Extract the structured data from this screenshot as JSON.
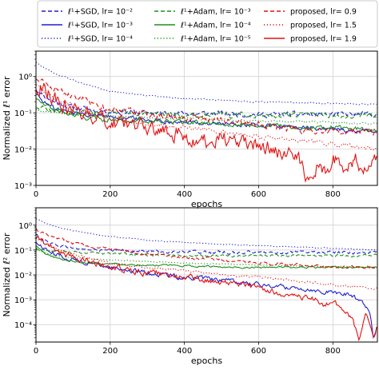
{
  "colors": {
    "blue": "#1f1fd0",
    "green": "#1f8f1f",
    "red": "#e01010",
    "grid": "#cccccc"
  },
  "legend": {
    "placement": "top, above plots, 3 columns",
    "items": [
      {
        "label": "ℓ¹+SGD, lr= 10⁻²",
        "color": "#1f1fd0",
        "style": "dashed"
      },
      {
        "label": "ℓ¹+SGD, lr= 10⁻³",
        "color": "#1f1fd0",
        "style": "solid"
      },
      {
        "label": "ℓ¹+SGD, lr= 10⁻⁴",
        "color": "#1f1fd0",
        "style": "dotted"
      },
      {
        "label": "ℓ¹+Adam, lr= 10⁻³",
        "color": "#1f8f1f",
        "style": "dashed"
      },
      {
        "label": "ℓ¹+Adam, lr= 10⁻⁴",
        "color": "#1f8f1f",
        "style": "solid"
      },
      {
        "label": "ℓ¹+Adam, lr= 10⁻⁵",
        "color": "#1f8f1f",
        "style": "dotted"
      },
      {
        "label": "proposed, lr= 0.9",
        "color": "#e01010",
        "style": "dashed"
      },
      {
        "label": "proposed, lr= 1.5",
        "color": "#e01010",
        "style": "dotted"
      },
      {
        "label": "proposed, lr= 1.9",
        "color": "#e01010",
        "style": "solid"
      }
    ]
  },
  "chart_data": [
    {
      "type": "line",
      "xlabel": "epochs",
      "ylabel": "Normalized ℓ¹ error",
      "yscale": "log",
      "xlim": [
        0,
        920
      ],
      "ylim": [
        0.001,
        5
      ],
      "xticks": [
        0,
        200,
        400,
        600,
        800
      ],
      "yticks": [
        0.001,
        0.01,
        0.1,
        1
      ],
      "ytick_labels": [
        "10⁻³",
        "10⁻²",
        "10⁻¹",
        "10⁰"
      ],
      "grid": true,
      "series": [
        {
          "name": "ℓ¹+SGD, lr= 10⁻²",
          "x": [
            0,
            20,
            50,
            100,
            150,
            200,
            300,
            400,
            500,
            600,
            700,
            800,
            900,
            920
          ],
          "y": [
            0.45,
            0.3,
            0.2,
            0.14,
            0.12,
            0.11,
            0.1,
            0.095,
            0.095,
            0.09,
            0.09,
            0.09,
            0.09,
            0.09
          ],
          "noise": 0.12
        },
        {
          "name": "ℓ¹+SGD, lr= 10⁻³",
          "x": [
            0,
            20,
            50,
            100,
            150,
            200,
            300,
            400,
            500,
            600,
            700,
            800,
            900,
            920
          ],
          "y": [
            0.35,
            0.2,
            0.13,
            0.1,
            0.09,
            0.08,
            0.065,
            0.055,
            0.05,
            0.045,
            0.04,
            0.035,
            0.03,
            0.03
          ],
          "noise": 0.1
        },
        {
          "name": "ℓ¹+SGD, lr= 10⁻⁴",
          "x": [
            0,
            20,
            50,
            100,
            150,
            200,
            300,
            400,
            500,
            600,
            700,
            800,
            900,
            920
          ],
          "y": [
            2.5,
            1.8,
            1.2,
            0.8,
            0.55,
            0.4,
            0.3,
            0.25,
            0.22,
            0.2,
            0.19,
            0.18,
            0.17,
            0.17
          ],
          "noise": 0.03
        },
        {
          "name": "ℓ¹+Adam, lr= 10⁻³",
          "x": [
            0,
            20,
            50,
            100,
            150,
            200,
            300,
            400,
            500,
            600,
            700,
            800,
            900,
            920
          ],
          "y": [
            0.15,
            0.13,
            0.12,
            0.11,
            0.1,
            0.1,
            0.095,
            0.09,
            0.09,
            0.088,
            0.085,
            0.085,
            0.085,
            0.085
          ],
          "noise": 0.12
        },
        {
          "name": "ℓ¹+Adam, lr= 10⁻⁴",
          "x": [
            0,
            20,
            50,
            100,
            150,
            200,
            300,
            400,
            500,
            600,
            700,
            800,
            900,
            920
          ],
          "y": [
            0.25,
            0.17,
            0.12,
            0.085,
            0.07,
            0.065,
            0.06,
            0.055,
            0.05,
            0.045,
            0.04,
            0.04,
            0.035,
            0.035
          ],
          "noise": 0.1
        },
        {
          "name": "ℓ¹+Adam, lr= 10⁻⁵",
          "x": [
            0,
            20,
            50,
            100,
            150,
            200,
            300,
            400,
            500,
            600,
            700,
            800,
            900,
            920
          ],
          "y": [
            0.13,
            0.11,
            0.1,
            0.09,
            0.085,
            0.08,
            0.075,
            0.07,
            0.065,
            0.06,
            0.058,
            0.055,
            0.05,
            0.05
          ],
          "noise": 0.05
        },
        {
          "name": "proposed, lr= 0.9",
          "x": [
            0,
            20,
            50,
            100,
            150,
            200,
            300,
            400,
            500,
            600,
            700,
            800,
            900,
            920
          ],
          "y": [
            0.9,
            0.7,
            0.45,
            0.28,
            0.18,
            0.12,
            0.09,
            0.07,
            0.06,
            0.045,
            0.035,
            0.03,
            0.03,
            0.03
          ],
          "noise": 0.15
        },
        {
          "name": "proposed, lr= 1.5",
          "x": [
            0,
            20,
            50,
            100,
            150,
            200,
            300,
            400,
            500,
            600,
            700,
            800,
            900,
            920
          ],
          "y": [
            0.6,
            0.4,
            0.25,
            0.15,
            0.1,
            0.07,
            0.05,
            0.04,
            0.03,
            0.022,
            0.018,
            0.014,
            0.01,
            0.01
          ],
          "noise": 0.1
        },
        {
          "name": "proposed, lr= 1.9",
          "x": [
            0,
            10,
            30,
            60,
            100,
            150,
            200,
            250,
            300,
            350,
            400,
            450,
            500,
            550,
            600,
            650,
            700,
            720,
            740,
            760,
            780,
            800,
            830,
            860,
            880,
            900,
            920
          ],
          "y": [
            0.5,
            0.6,
            0.35,
            0.2,
            0.11,
            0.08,
            0.06,
            0.05,
            0.04,
            0.03,
            0.025,
            0.015,
            0.02,
            0.014,
            0.013,
            0.01,
            0.006,
            0.003,
            0.0012,
            0.004,
            0.002,
            0.005,
            0.003,
            0.006,
            0.002,
            0.005,
            0.004
          ],
          "noise": 0.35
        }
      ]
    },
    {
      "type": "line",
      "xlabel": "epochs",
      "ylabel": "Normalized ℓ² error",
      "yscale": "log",
      "xlim": [
        0,
        920
      ],
      "ylim": [
        2e-05,
        5
      ],
      "xticks": [
        0,
        200,
        400,
        600,
        800
      ],
      "yticks": [
        0.0001,
        0.001,
        0.01,
        0.1,
        1
      ],
      "ytick_labels": [
        "10⁻⁴",
        "10⁻³",
        "10⁻²",
        "10⁻¹",
        "10⁰"
      ],
      "grid": true,
      "series": [
        {
          "name": "ℓ¹+SGD, lr= 10⁻²",
          "x": [
            0,
            20,
            50,
            100,
            150,
            200,
            300,
            400,
            500,
            600,
            700,
            800,
            900,
            920
          ],
          "y": [
            0.4,
            0.25,
            0.17,
            0.12,
            0.1,
            0.095,
            0.09,
            0.085,
            0.08,
            0.08,
            0.08,
            0.08,
            0.08,
            0.08
          ],
          "noise": 0.1
        },
        {
          "name": "ℓ¹+SGD, lr= 10⁻³",
          "x": [
            0,
            20,
            50,
            100,
            150,
            200,
            300,
            400,
            500,
            600,
            700,
            750,
            800,
            850,
            880,
            900,
            910,
            920
          ],
          "y": [
            0.2,
            0.12,
            0.07,
            0.04,
            0.03,
            0.02,
            0.012,
            0.008,
            0.006,
            0.004,
            0.003,
            0.0025,
            0.002,
            0.0015,
            0.0008,
            0.0003,
            3e-05,
            0.0001
          ],
          "noise": 0.15
        },
        {
          "name": "ℓ¹+SGD, lr= 10⁻⁴",
          "x": [
            0,
            20,
            50,
            100,
            150,
            200,
            300,
            400,
            500,
            600,
            700,
            800,
            900,
            920
          ],
          "y": [
            1.8,
            1.3,
            0.9,
            0.6,
            0.45,
            0.35,
            0.25,
            0.2,
            0.17,
            0.15,
            0.13,
            0.12,
            0.1,
            0.1
          ],
          "noise": 0.03
        },
        {
          "name": "ℓ¹+Adam, lr= 10⁻³",
          "x": [
            0,
            20,
            50,
            100,
            150,
            200,
            300,
            400,
            500,
            600,
            700,
            800,
            900,
            920
          ],
          "y": [
            0.12,
            0.1,
            0.09,
            0.08,
            0.075,
            0.07,
            0.065,
            0.06,
            0.06,
            0.06,
            0.06,
            0.06,
            0.06,
            0.06
          ],
          "noise": 0.08
        },
        {
          "name": "ℓ¹+Adam, lr= 10⁻⁴",
          "x": [
            0,
            20,
            50,
            100,
            150,
            200,
            300,
            400,
            500,
            600,
            700,
            800,
            900,
            920
          ],
          "y": [
            0.15,
            0.08,
            0.05,
            0.035,
            0.03,
            0.028,
            0.025,
            0.023,
            0.021,
            0.02,
            0.02,
            0.02,
            0.02,
            0.02
          ],
          "noise": 0.06
        },
        {
          "name": "ℓ¹+Adam, lr= 10⁻⁵",
          "x": [
            0,
            20,
            50,
            100,
            150,
            200,
            300,
            400,
            500,
            600,
            700,
            800,
            900,
            920
          ],
          "y": [
            0.1,
            0.08,
            0.06,
            0.05,
            0.045,
            0.04,
            0.035,
            0.03,
            0.028,
            0.025,
            0.023,
            0.022,
            0.02,
            0.02
          ],
          "noise": 0.03
        },
        {
          "name": "proposed, lr= 0.9",
          "x": [
            0,
            20,
            50,
            100,
            150,
            200,
            300,
            400,
            500,
            600,
            700,
            800,
            900,
            920
          ],
          "y": [
            0.7,
            0.5,
            0.35,
            0.2,
            0.14,
            0.1,
            0.07,
            0.05,
            0.04,
            0.03,
            0.025,
            0.02,
            0.02,
            0.02
          ],
          "noise": 0.1
        },
        {
          "name": "proposed, lr= 1.5",
          "x": [
            0,
            20,
            50,
            100,
            150,
            200,
            300,
            400,
            500,
            600,
            700,
            800,
            900,
            920
          ],
          "y": [
            0.3,
            0.2,
            0.12,
            0.07,
            0.045,
            0.03,
            0.02,
            0.015,
            0.01,
            0.008,
            0.006,
            0.004,
            0.003,
            0.003
          ],
          "noise": 0.08
        },
        {
          "name": "proposed, lr= 1.9",
          "x": [
            0,
            10,
            30,
            60,
            100,
            150,
            200,
            300,
            400,
            500,
            550,
            600,
            650,
            700,
            750,
            780,
            800,
            820,
            850,
            870,
            890,
            910,
            920
          ],
          "y": [
            0.25,
            0.3,
            0.15,
            0.08,
            0.05,
            0.03,
            0.02,
            0.012,
            0.008,
            0.005,
            0.004,
            0.003,
            0.002,
            0.0015,
            0.001,
            0.0006,
            0.001,
            0.0004,
            0.0002,
            3e-05,
            0.0003,
            3e-05,
            0.0001
          ],
          "noise": 0.2
        }
      ]
    }
  ]
}
